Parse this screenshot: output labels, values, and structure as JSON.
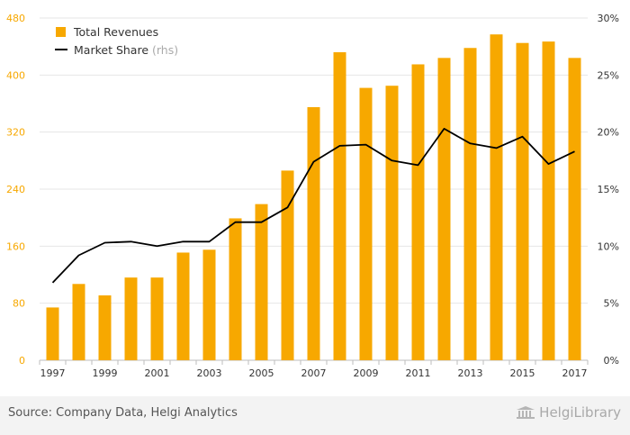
{
  "chart_data": {
    "type": "bar+line",
    "categories": [
      "1997",
      "1998",
      "1999",
      "2000",
      "2001",
      "2002",
      "2003",
      "2004",
      "2005",
      "2006",
      "2007",
      "2008",
      "2009",
      "2010",
      "2011",
      "2012",
      "2013",
      "2014",
      "2015",
      "2016",
      "2017"
    ],
    "x_tick_labels": [
      "1997",
      "1999",
      "2001",
      "2003",
      "2005",
      "2007",
      "2009",
      "2011",
      "2013",
      "2015",
      "2017"
    ],
    "series": [
      {
        "name": "Total Revenues",
        "type": "bar",
        "axis": "left",
        "color": "#f7a800",
        "values": [
          74,
          107,
          91,
          116,
          116,
          151,
          155,
          199,
          219,
          266,
          355,
          432,
          382,
          385,
          415,
          424,
          438,
          457,
          445,
          447,
          424
        ]
      },
      {
        "name": "Market Share",
        "name_suffix": "(rhs)",
        "type": "line",
        "axis": "right",
        "color": "#000000",
        "values": [
          6.8,
          9.2,
          10.3,
          10.4,
          10.0,
          10.4,
          10.4,
          12.1,
          12.1,
          13.4,
          17.4,
          18.8,
          18.9,
          17.5,
          17.1,
          20.3,
          19.0,
          18.6,
          19.6,
          17.2,
          18.3
        ]
      }
    ],
    "y_left": {
      "ticks": [
        0,
        80,
        160,
        240,
        320,
        400,
        480
      ],
      "ylim": [
        0,
        480
      ],
      "tick_color": "#f7a800"
    },
    "y_right": {
      "ticks": [
        "0%",
        "5%",
        "10%",
        "15%",
        "20%",
        "25%",
        "30%"
      ],
      "values": [
        0,
        5,
        10,
        15,
        20,
        25,
        30
      ],
      "ylim": [
        0,
        30
      ]
    },
    "grid": true,
    "legend_placement": "top-left"
  },
  "footer": {
    "source": "Source: Company Data, Helgi Analytics",
    "brand": "HelgiLibrary"
  }
}
